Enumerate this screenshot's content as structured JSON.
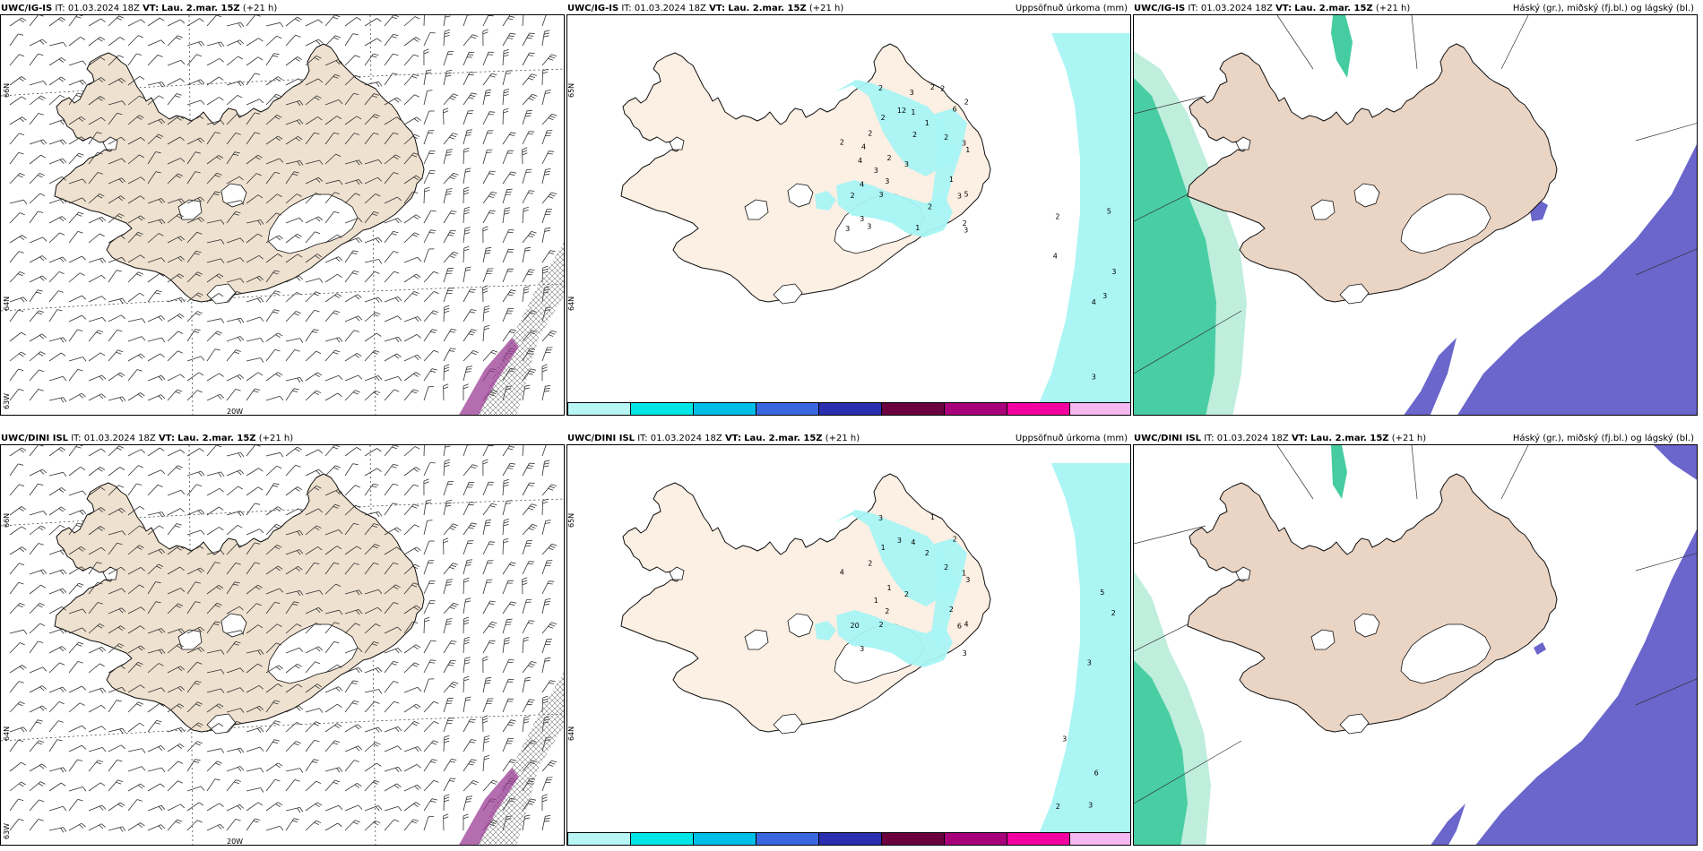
{
  "panels": [
    {
      "id": "p1",
      "model": "UWC/IG-IS",
      "it_label": "IT:",
      "it_value": "01.03.2024 18Z",
      "vt_label": "VT:",
      "vt_value": "Lau. 2.mar. 15Z",
      "lead": "(+21 h)",
      "right_title": "",
      "type": "wind",
      "lat_labels": [
        "66N",
        "64N",
        "63W"
      ],
      "lon_labels": [
        "20W"
      ]
    },
    {
      "id": "p2",
      "model": "UWC/IG-IS",
      "it_label": "IT:",
      "it_value": "01.03.2024 18Z",
      "vt_label": "VT:",
      "vt_value": "Lau. 2.mar. 15Z",
      "lead": "(+21 h)",
      "right_title": "Uppsöfnuð úrkoma (mm)",
      "type": "precip",
      "lat_labels": [
        "65N",
        "64N"
      ],
      "numbers": [
        "2",
        "3",
        "1",
        "1",
        "2",
        "5",
        "3",
        "2",
        "3",
        "6",
        "2",
        "1",
        "2",
        "3",
        "2",
        "3",
        "3",
        "2",
        "2",
        "12",
        "2",
        "1",
        "3",
        "4",
        "2",
        "2",
        "3",
        "2",
        "1",
        "2",
        "3",
        "3",
        "4",
        "3",
        "4",
        "4",
        "3",
        "4",
        "5",
        "3",
        "3",
        "2"
      ]
    },
    {
      "id": "p3",
      "model": "UWC/IG-IS",
      "it_label": "IT:",
      "it_value": "01.03.2024 18Z",
      "vt_label": "VT:",
      "vt_value": "Lau. 2.mar. 15Z",
      "lead": "(+21 h)",
      "right_title": "Háský (gr.), miðský (fj.bl.) og lágský (bl.)",
      "type": "cloud"
    },
    {
      "id": "p4",
      "model": "UWC/DINI ISL",
      "it_label": "IT:",
      "it_value": "01.03.2024 18Z",
      "vt_label": "VT:",
      "vt_value": "Lau. 2.mar. 15Z",
      "lead": "(+21 h)",
      "right_title": "",
      "type": "wind",
      "lat_labels": [
        "66N",
        "64N",
        "63W"
      ],
      "lon_labels": [
        "20W"
      ]
    },
    {
      "id": "p5",
      "model": "UWC/DINI ISL",
      "it_label": "IT:",
      "it_value": "01.03.2024 18Z",
      "vt_label": "VT:",
      "vt_value": "Lau. 2.mar. 15Z",
      "lead": "(+21 h)",
      "right_title": "Uppsöfnuð úrkoma (mm)",
      "type": "precip",
      "lat_labels": [
        "65N",
        "64N"
      ],
      "numbers": [
        "1",
        "1",
        "2",
        "3",
        "1",
        "4",
        "2",
        "1",
        "6",
        "2",
        "2",
        "2",
        "2",
        "2",
        "20",
        "2",
        "1",
        "4",
        "3",
        "3",
        "3",
        "4",
        "3",
        "3",
        "3",
        "5",
        "2",
        "6",
        "3",
        "2"
      ]
    },
    {
      "id": "p6",
      "model": "UWC/DINI ISL",
      "it_label": "IT:",
      "it_value": "01.03.2024 18Z",
      "vt_label": "VT:",
      "vt_value": "Lau. 2.mar. 15Z",
      "lead": "(+21 h)",
      "right_title": "Háský (gr.), miðský (fj.bl.) og lágský (bl.)",
      "type": "cloud"
    }
  ],
  "precip_legend": {
    "colors": [
      "#b8f6f6",
      "#00e5e5",
      "#00bfe6",
      "#3a66e0",
      "#2a2fb0",
      "#6a0040",
      "#a8007a",
      "#f200a0",
      "#f6b8f0"
    ],
    "labels": [
      "1",
      "10",
      "25",
      "50",
      "75",
      "100",
      "150",
      "200",
      "400"
    ]
  },
  "colors": {
    "land_wind": "#efe1cf",
    "land_precip": "#fcefe3",
    "land_cloud": "#ead4c4",
    "precip_light": "#a8f4f4",
    "cloud_high": "#17c08a",
    "cloud_mid": "#6a66cc",
    "hatch": "#9b3d96"
  }
}
